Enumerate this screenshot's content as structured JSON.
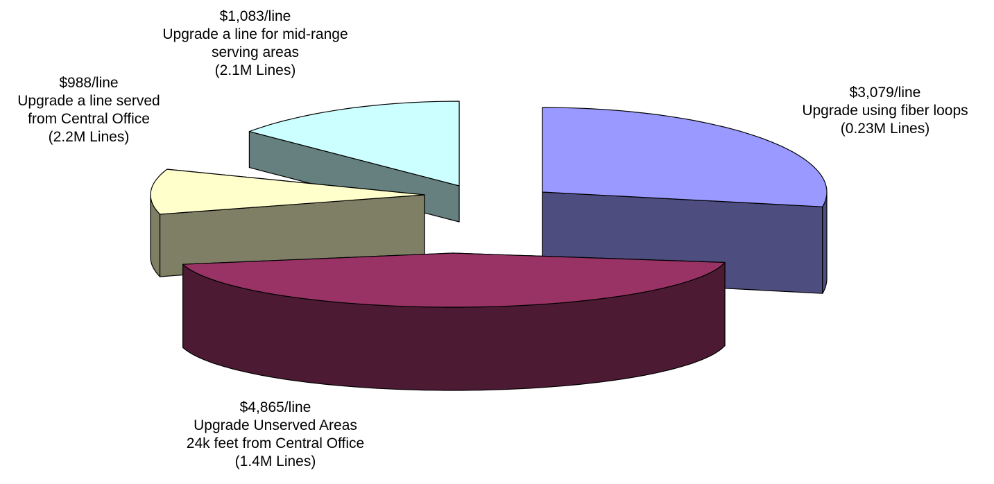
{
  "chart_data": {
    "type": "pie",
    "three_d": true,
    "exploded": true,
    "slices": [
      {
        "label_lines": [
          "$3,079/line",
          "Upgrade using fiber loops",
          "(0.23M Lines)"
        ],
        "price_per_line": 3079,
        "lines_millions": 0.23,
        "share_estimated": 0.3,
        "color_top": "#9999FF",
        "color_side": "#4D4D7F"
      },
      {
        "label_lines": [
          "$4,865/line",
          "Upgrade Unserved Areas",
          "24k feet from Central Office",
          "(1.4M Lines)"
        ],
        "price_per_line": 4865,
        "lines_millions": 1.4,
        "share_estimated": 0.48,
        "color_top": "#993366",
        "color_side": "#4D1A33"
      },
      {
        "label_lines": [
          "$988/line",
          "Upgrade a line served",
          "from Central Office",
          "(2.2M Lines)"
        ],
        "price_per_line": 988,
        "lines_millions": 2.2,
        "share_estimated": 0.09,
        "color_top": "#FFFFCC",
        "color_side": "#7F7F66"
      },
      {
        "label_lines": [
          "$1,083/line",
          "Upgrade a line for mid-range",
          "serving areas",
          "(2.1M Lines)"
        ],
        "price_per_line": 1083,
        "lines_millions": 2.1,
        "share_estimated": 0.13,
        "color_top": "#CCFFFF",
        "color_side": "#668080"
      }
    ],
    "legend": "none",
    "grid": false
  }
}
